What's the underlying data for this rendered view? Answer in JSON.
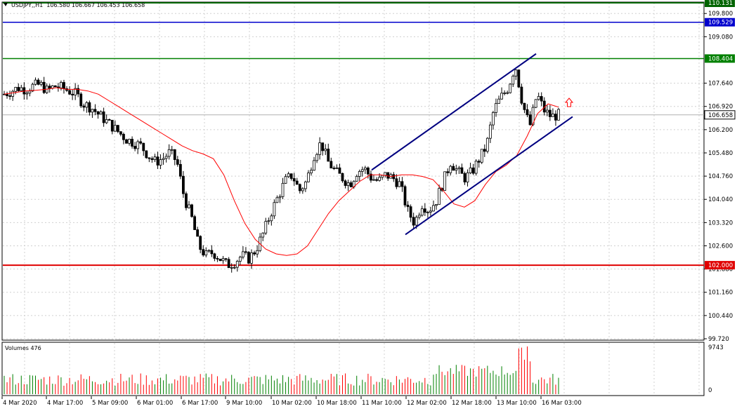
{
  "header": {
    "symbol": "USDJPY,,H1",
    "ohlc": "106.580 106.667 106.453 106.658"
  },
  "price_axis": {
    "ticks": [
      "109.800",
      "109.080",
      "107.640",
      "106.920",
      "106.200",
      "105.480",
      "104.760",
      "104.040",
      "103.320",
      "102.600",
      "101.880",
      "101.160",
      "100.440",
      "99.720"
    ]
  },
  "level_labels": {
    "top": "110.131",
    "blue": "109.529",
    "green": "108.404",
    "current": "106.658",
    "red": "102.000"
  },
  "volume_panel": {
    "title": "Volumes 476",
    "max_label": "9743",
    "zero_label": "0"
  },
  "time_axis": {
    "labels": [
      "4 Mar 2020",
      "4 Mar 17:00",
      "5 Mar 09:00",
      "6 Mar 01:00",
      "6 Mar 17:00",
      "9 Mar 10:00",
      "10 Mar 02:00",
      "10 Mar 18:00",
      "11 Mar 10:00",
      "12 Mar 02:00",
      "12 Mar 18:00",
      "13 Mar 10:00",
      "16 Mar 03:00"
    ]
  },
  "colors": {
    "up_candle": "#000000",
    "down_candle": "#000000",
    "ma_line": "#ff0000",
    "channel": "#000080",
    "line_top": "#006400",
    "line_blue": "#0000cd",
    "line_green": "#008000",
    "line_red": "#e00000",
    "current_price": "#000000",
    "vol_up": "#008000",
    "vol_down": "#ff0000",
    "signal_arrow": "#ff0000"
  },
  "chart_data": {
    "type": "candlestick",
    "symbol": "USDJPY",
    "timeframe": "H1",
    "ylim": [
      99.72,
      110.131
    ],
    "horizontal_levels": [
      110.131,
      109.529,
      108.404,
      102.0
    ],
    "current_price": 106.658,
    "x": [
      "4 Mar 2020",
      "4 Mar 17:00",
      "5 Mar 09:00",
      "6 Mar 01:00",
      "6 Mar 17:00",
      "9 Mar 10:00",
      "10 Mar 02:00",
      "10 Mar 18:00",
      "11 Mar 10:00",
      "12 Mar 02:00",
      "12 Mar 18:00",
      "13 Mar 10:00",
      "16 Mar 03:00"
    ],
    "close_path": [
      107.3,
      107.4,
      107.5,
      107.45,
      107.55,
      107.6,
      107.4,
      107.55,
      107.5,
      107.4,
      107.3,
      107.0,
      106.9,
      106.7,
      106.5,
      106.3,
      106.1,
      105.9,
      105.8,
      105.7,
      105.4,
      105.2,
      105.3,
      105.5,
      105.2,
      104.1,
      103.5,
      102.6,
      102.3,
      102.4,
      102.2,
      102.0,
      102.1,
      102.3,
      102.2,
      102.5,
      103.0,
      103.6,
      104.1,
      104.6,
      104.8,
      104.3,
      104.6,
      105.4,
      105.8,
      105.2,
      104.9,
      104.7,
      104.5,
      104.9,
      105.0,
      104.7,
      104.6,
      104.8,
      104.7,
      104.5,
      103.7,
      103.3,
      103.9,
      103.7,
      104.0,
      104.6,
      105.2,
      104.9,
      104.7,
      104.9,
      105.3,
      105.7,
      106.8,
      107.2,
      107.5,
      108.2,
      107.0,
      106.3,
      107.3,
      106.8,
      106.6,
      106.658
    ],
    "ma_period_path": [
      107.3,
      107.35,
      107.4,
      107.42,
      107.45,
      107.5,
      107.45,
      107.45,
      107.4,
      107.3,
      107.1,
      106.9,
      106.7,
      106.5,
      106.3,
      106.1,
      105.9,
      105.7,
      105.55,
      105.45,
      105.3,
      104.8,
      104.0,
      103.3,
      102.8,
      102.5,
      102.35,
      102.3,
      102.35,
      102.6,
      103.1,
      103.6,
      104.0,
      104.3,
      104.6,
      104.8,
      104.8,
      104.75,
      104.8,
      104.8,
      104.75,
      104.65,
      104.3,
      103.9,
      103.8,
      104.0,
      104.5,
      104.9,
      105.1,
      105.4,
      106.0,
      106.7,
      107.0,
      106.9
    ],
    "volumes_max": 9743,
    "volumes_current": 476
  }
}
